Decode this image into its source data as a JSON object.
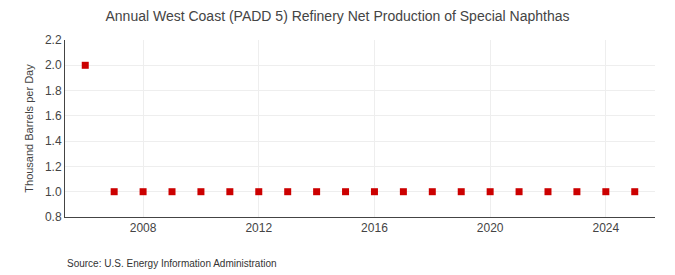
{
  "chart_data": {
    "type": "scatter",
    "title": "Annual West Coast (PADD 5) Refinery Net Production of Special Naphthas",
    "ylabel": "Thousand Barrels per Day",
    "annotations": [
      "Source: U.S. Energy Information Administration"
    ],
    "x": [
      2006,
      2007,
      2008,
      2009,
      2010,
      2011,
      2012,
      2013,
      2014,
      2015,
      2016,
      2017,
      2018,
      2019,
      2020,
      2021,
      2022,
      2023,
      2024,
      2025
    ],
    "values": [
      2.0,
      1.0,
      1.0,
      1.0,
      1.0,
      1.0,
      1.0,
      1.0,
      1.0,
      1.0,
      1.0,
      1.0,
      1.0,
      1.0,
      1.0,
      1.0,
      1.0,
      1.0,
      1.0,
      1.0
    ],
    "color": "#cc0000",
    "marker": "square",
    "xlim": [
      2005.3,
      2025.7
    ],
    "xticks": [
      2008,
      2012,
      2016,
      2020,
      2024
    ],
    "ylim": [
      0.8,
      2.2
    ],
    "yticks": [
      0.8,
      {
        "value": 1.0,
        "label": "1.0"
      },
      1.2,
      1.4,
      1.6,
      1.8,
      {
        "value": 2.0,
        "label": "2.0"
      },
      2.2
    ],
    "grid": true
  }
}
